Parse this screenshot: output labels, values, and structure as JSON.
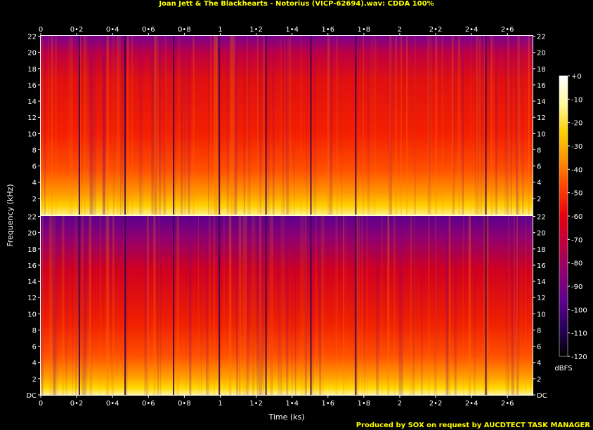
{
  "title": "Joan Jett & The Blackhearts - Notorius (VICP-62694).wav: CDDA 100%",
  "footer": "Produced by SOX on request by AUCDTECT TASK MANAGER",
  "chart_data": {
    "type": "heatmap",
    "xlabel": "Time (ks)",
    "ylabel": "Frequency (kHz)",
    "xlim": [
      0,
      2.74
    ],
    "ylim": [
      0,
      22.05
    ],
    "x_ticks": [
      "0",
      "0•2",
      "0•4",
      "0•6",
      "0•8",
      "1",
      "1•2",
      "1•4",
      "1•6",
      "1•8",
      "2",
      "2•2",
      "2•4",
      "2•6"
    ],
    "y_ticks_top": [
      "2",
      "4",
      "6",
      "8",
      "10",
      "12",
      "14",
      "16",
      "18",
      "20",
      "22"
    ],
    "y_ticks_bottom": [
      "DC",
      "2",
      "4",
      "6",
      "8",
      "10",
      "12",
      "14",
      "16",
      "18",
      "20",
      "22"
    ],
    "channels": [
      "left",
      "right"
    ],
    "colorbar": {
      "label": "dBFS",
      "range": [
        -120,
        0
      ],
      "ticks": [
        "+0",
        "-10",
        "-20",
        "-30",
        "-40",
        "-50",
        "-60",
        "-70",
        "-80",
        "-90",
        "-100",
        "-110",
        "-120"
      ]
    },
    "track_boundaries_ks": [
      0.215,
      0.47,
      0.74,
      0.995,
      1.255,
      1.505,
      1.755,
      2.48
    ],
    "colors": {
      "high": "#ffffe0",
      "mid_high": "#ffd000",
      "mid": "#ff3000",
      "low": "#c00040",
      "very_low": "#500080",
      "floor": "#000000"
    }
  }
}
